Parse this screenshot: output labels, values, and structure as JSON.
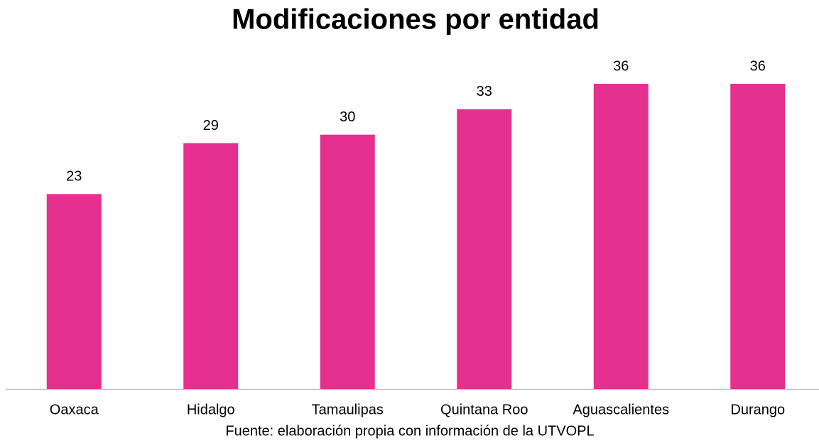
{
  "chart_data": {
    "type": "bar",
    "title": "Modificaciones por entidad",
    "categories": [
      "Oaxaca",
      "Hidalgo",
      "Tamaulipas",
      "Quintana Roo",
      "Aguascalientes",
      "Durango"
    ],
    "values": [
      23,
      29,
      30,
      33,
      36,
      36
    ],
    "color": "#e6308f",
    "source": "Fuente: elaboración propia con información de la UTVOPL"
  }
}
